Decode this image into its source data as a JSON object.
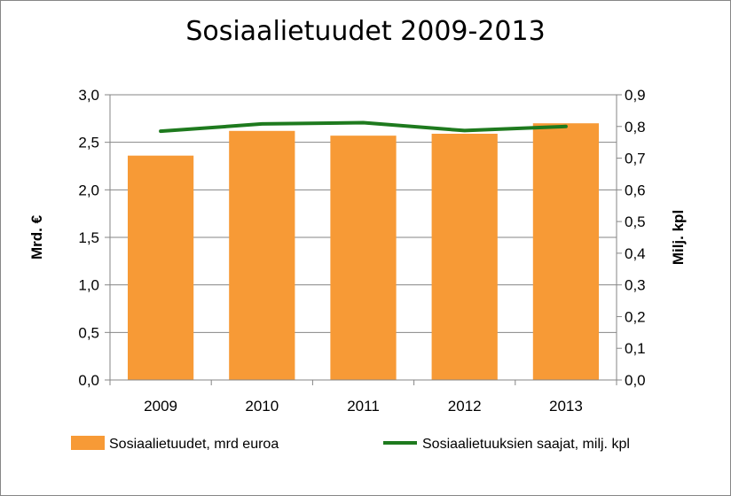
{
  "chart_data": {
    "type": "bar",
    "title": "Sosiaalietuudet 2009-2013",
    "categories": [
      "2009",
      "2010",
      "2011",
      "2012",
      "2013"
    ],
    "series": [
      {
        "name": "Sosiaalietuudet, mrd  euroa",
        "type": "bar",
        "axis": "left",
        "color": "#F79A36",
        "values": [
          2.36,
          2.62,
          2.57,
          2.59,
          2.7
        ]
      },
      {
        "name": "Sosiaalietuuksien saajat, milj. kpl",
        "type": "line",
        "axis": "right",
        "color": "#1E7A1E",
        "values": [
          0.785,
          0.808,
          0.812,
          0.787,
          0.8
        ]
      }
    ],
    "ylabel": "Mrd. €",
    "y2label": "Milj. kpl",
    "ylim": [
      0,
      3.0
    ],
    "y2lim": [
      0,
      0.9
    ],
    "yticks": [
      "0,0",
      "0,5",
      "1,0",
      "1,5",
      "2,0",
      "2,5",
      "3,0"
    ],
    "y2ticks": [
      "0,0",
      "0,1",
      "0,2",
      "0,3",
      "0,4",
      "0,5",
      "0,6",
      "0,7",
      "0,8",
      "0,9"
    ],
    "grid": "horizontal",
    "legend": "bottom"
  }
}
